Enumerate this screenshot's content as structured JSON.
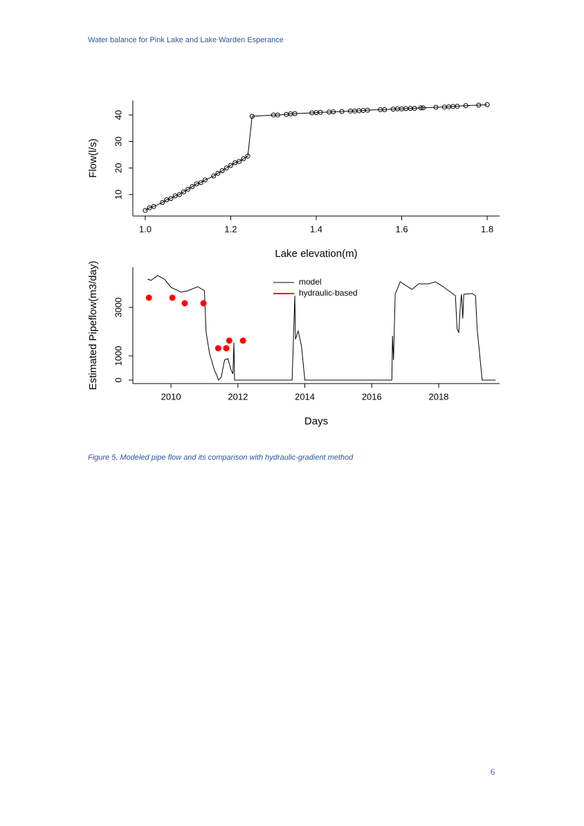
{
  "header": "Water balance for Pink Lake and Lake Warden Esperance",
  "chart_data": [
    {
      "type": "line",
      "marker": "open-circle",
      "color": "#000000",
      "x_label": "Lake elevation(m)",
      "y_label": "Flow(l/s)",
      "x": [
        1.0,
        1.01,
        1.02,
        1.04,
        1.05,
        1.06,
        1.07,
        1.08,
        1.09,
        1.1,
        1.11,
        1.12,
        1.13,
        1.14,
        1.16,
        1.17,
        1.18,
        1.19,
        1.2,
        1.21,
        1.22,
        1.23,
        1.24,
        1.25,
        1.3,
        1.31,
        1.33,
        1.34,
        1.35,
        1.39,
        1.4,
        1.41,
        1.43,
        1.44,
        1.46,
        1.48,
        1.49,
        1.5,
        1.51,
        1.52,
        1.55,
        1.56,
        1.58,
        1.59,
        1.6,
        1.61,
        1.62,
        1.63,
        1.645,
        1.65,
        1.68,
        1.7,
        1.71,
        1.72,
        1.73,
        1.75,
        1.78,
        1.8
      ],
      "values": [
        4,
        5,
        5.5,
        7,
        8,
        8.5,
        9.5,
        10,
        11,
        12,
        13,
        14,
        14.5,
        15.5,
        17,
        18,
        19,
        20,
        21,
        22,
        22.5,
        23.5,
        24.5,
        39.5,
        40,
        40,
        40.2,
        40.4,
        40.5,
        40.8,
        40.9,
        41,
        41.1,
        41.2,
        41.3,
        41.5,
        41.5,
        41.6,
        41.7,
        41.8,
        42,
        42,
        42.2,
        42.3,
        42.3,
        42.4,
        42.5,
        42.5,
        42.7,
        42.7,
        42.9,
        43,
        43.1,
        43.2,
        43.3,
        43.5,
        43.7,
        43.9
      ],
      "xlim": [
        0.971,
        1.829
      ],
      "ylim": [
        1.9,
        45.5
      ],
      "xticks": [
        {
          "value": 1,
          "label": "1.0"
        },
        1.2,
        1.4,
        1.6,
        1.8
      ],
      "yticks": [
        10,
        20,
        30,
        40
      ]
    },
    {
      "type": "line",
      "x_label": "Days",
      "y_label": "Estimated Pipeflow(m3/day)",
      "legend": "top",
      "series": [
        {
          "name": "model",
          "color": "#000000",
          "marker": "none",
          "x": [
            2009.3,
            2009.4,
            2009.6,
            2009.8,
            2010.0,
            2010.3,
            2010.5,
            2010.8,
            2011.0,
            2011.05,
            2011.15,
            2011.3,
            2011.35,
            2011.42,
            2011.5,
            2011.6,
            2011.7,
            2011.8,
            2011.85,
            2011.88,
            2011.9,
            2013.62,
            2013.7,
            2013.72,
            2013.8,
            2013.9,
            2014.0,
            2016.6,
            2016.62,
            2016.65,
            2016.7,
            2016.85,
            2017.2,
            2017.4,
            2017.7,
            2017.9,
            2018.1,
            2018.5,
            2018.55,
            2018.6,
            2018.65,
            2018.68,
            2018.72,
            2018.75,
            2019.0,
            2019.1,
            2019.15,
            2019.3,
            2019.7
          ],
          "values": [
            4171,
            4114,
            4314,
            4171,
            3829,
            3629,
            3686,
            3857,
            3686,
            1971,
            1114,
            400,
            257,
            0,
            114,
            829,
            886,
            400,
            257,
            1543,
            0,
            0,
            3486,
            1686,
            2029,
            1400,
            0,
            0,
            1829,
            829,
            3543,
            4057,
            3743,
            3971,
            3971,
            4057,
            3886,
            3486,
            2114,
            1971,
            3114,
            3543,
            2543,
            3543,
            3571,
            3486,
            2114,
            0,
            0
          ]
        },
        {
          "name": "hydraulic-based",
          "color": "#ff0000",
          "marker": "filled-circle",
          "x": [
            2009.34,
            2010.04,
            2010.41,
            2010.97,
            2011.41,
            2011.65,
            2011.74,
            2012.15
          ],
          "values": [
            3400,
            3400,
            3171,
            3171,
            1314,
            1314,
            1629,
            1629
          ]
        }
      ],
      "xlim": [
        2008.86,
        2019.82
      ],
      "ylim": [
        -143,
        4657
      ],
      "xticks": [
        2010,
        2012,
        2014,
        2016,
        2018
      ],
      "yticks": [
        0,
        1000,
        3000
      ]
    }
  ],
  "caption": "Figure 5. Modeled pipe flow and its comparison with hydraulic-gradient method",
  "page_number": "6"
}
